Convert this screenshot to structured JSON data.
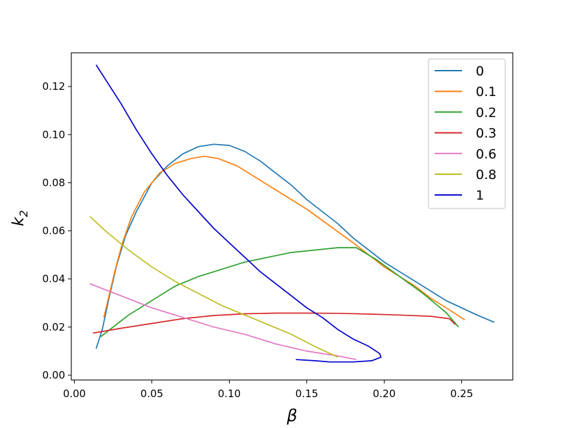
{
  "chart_data": {
    "type": "line",
    "xlabel": "β",
    "ylabel": "k",
    "ylabel_subscript": "2",
    "xlim": [
      -0.002,
      0.283
    ],
    "ylim": [
      -0.002,
      0.134
    ],
    "xticks": [
      0.0,
      0.05,
      0.1,
      0.15,
      0.2,
      0.25
    ],
    "xtick_labels": [
      "0.00",
      "0.05",
      "0.10",
      "0.15",
      "0.20",
      "0.25"
    ],
    "yticks": [
      0.0,
      0.02,
      0.04,
      0.06,
      0.08,
      0.1,
      0.12
    ],
    "ytick_labels": [
      "0.00",
      "0.02",
      "0.04",
      "0.06",
      "0.08",
      "0.10",
      "0.12"
    ],
    "grid": false,
    "legend_position": "top-right",
    "series": [
      {
        "name": "0",
        "color": "#1f77b4",
        "points": [
          [
            0.014,
            0.011
          ],
          [
            0.018,
            0.019
          ],
          [
            0.022,
            0.031
          ],
          [
            0.027,
            0.045
          ],
          [
            0.033,
            0.058
          ],
          [
            0.04,
            0.068
          ],
          [
            0.05,
            0.08
          ],
          [
            0.06,
            0.087
          ],
          [
            0.07,
            0.092
          ],
          [
            0.08,
            0.095
          ],
          [
            0.09,
            0.096
          ],
          [
            0.1,
            0.0955
          ],
          [
            0.11,
            0.093
          ],
          [
            0.12,
            0.089
          ],
          [
            0.13,
            0.084
          ],
          [
            0.14,
            0.079
          ],
          [
            0.15,
            0.073
          ],
          [
            0.16,
            0.068
          ],
          [
            0.17,
            0.063
          ],
          [
            0.18,
            0.057
          ],
          [
            0.19,
            0.052
          ],
          [
            0.2,
            0.047
          ],
          [
            0.21,
            0.043
          ],
          [
            0.22,
            0.039
          ],
          [
            0.23,
            0.035
          ],
          [
            0.24,
            0.031
          ],
          [
            0.25,
            0.028
          ],
          [
            0.26,
            0.025
          ],
          [
            0.271,
            0.022
          ]
        ]
      },
      {
        "name": "0.1",
        "color": "#ff7f0e",
        "points": [
          [
            0.019,
            0.024
          ],
          [
            0.022,
            0.032
          ],
          [
            0.026,
            0.043
          ],
          [
            0.031,
            0.055
          ],
          [
            0.037,
            0.066
          ],
          [
            0.045,
            0.076
          ],
          [
            0.055,
            0.084
          ],
          [
            0.065,
            0.088
          ],
          [
            0.075,
            0.09
          ],
          [
            0.084,
            0.091
          ],
          [
            0.093,
            0.09
          ],
          [
            0.105,
            0.087
          ],
          [
            0.12,
            0.081
          ],
          [
            0.135,
            0.075
          ],
          [
            0.15,
            0.069
          ],
          [
            0.165,
            0.062
          ],
          [
            0.18,
            0.055
          ],
          [
            0.19,
            0.05
          ],
          [
            0.2,
            0.045
          ],
          [
            0.21,
            0.041
          ],
          [
            0.22,
            0.037
          ],
          [
            0.23,
            0.032
          ],
          [
            0.24,
            0.028
          ],
          [
            0.252,
            0.023
          ]
        ]
      },
      {
        "name": "0.2",
        "color": "#2ca02c",
        "points": [
          [
            0.017,
            0.016
          ],
          [
            0.025,
            0.02
          ],
          [
            0.035,
            0.025
          ],
          [
            0.045,
            0.029
          ],
          [
            0.055,
            0.033
          ],
          [
            0.065,
            0.037
          ],
          [
            0.08,
            0.041
          ],
          [
            0.095,
            0.044
          ],
          [
            0.11,
            0.047
          ],
          [
            0.125,
            0.049
          ],
          [
            0.14,
            0.051
          ],
          [
            0.155,
            0.052
          ],
          [
            0.17,
            0.053
          ],
          [
            0.182,
            0.053
          ],
          [
            0.195,
            0.048
          ],
          [
            0.21,
            0.041
          ],
          [
            0.225,
            0.034
          ],
          [
            0.24,
            0.026
          ],
          [
            0.248,
            0.02
          ]
        ]
      },
      {
        "name": "0.3",
        "color": "#d62728",
        "points": [
          [
            0.012,
            0.0175
          ],
          [
            0.03,
            0.0195
          ],
          [
            0.05,
            0.0215
          ],
          [
            0.07,
            0.0235
          ],
          [
            0.09,
            0.0248
          ],
          [
            0.11,
            0.0255
          ],
          [
            0.13,
            0.0258
          ],
          [
            0.15,
            0.0258
          ],
          [
            0.17,
            0.0257
          ],
          [
            0.19,
            0.0254
          ],
          [
            0.21,
            0.025
          ],
          [
            0.23,
            0.0245
          ],
          [
            0.242,
            0.0235
          ],
          [
            0.246,
            0.021
          ]
        ]
      },
      {
        "name": "0.6",
        "color": "#e377c2",
        "points": [
          [
            0.01,
            0.038
          ],
          [
            0.03,
            0.033
          ],
          [
            0.05,
            0.028
          ],
          [
            0.07,
            0.024
          ],
          [
            0.09,
            0.02
          ],
          [
            0.11,
            0.017
          ],
          [
            0.13,
            0.013
          ],
          [
            0.15,
            0.01
          ],
          [
            0.17,
            0.008
          ],
          [
            0.182,
            0.0065
          ]
        ]
      },
      {
        "name": "0.8",
        "color": "#bcbd22",
        "points": [
          [
            0.01,
            0.066
          ],
          [
            0.02,
            0.06
          ],
          [
            0.035,
            0.052
          ],
          [
            0.05,
            0.045
          ],
          [
            0.065,
            0.039
          ],
          [
            0.08,
            0.034
          ],
          [
            0.095,
            0.029
          ],
          [
            0.11,
            0.025
          ],
          [
            0.125,
            0.021
          ],
          [
            0.14,
            0.017
          ],
          [
            0.155,
            0.012
          ],
          [
            0.17,
            0.0075
          ]
        ]
      },
      {
        "name": "1",
        "color": "#0000cc",
        "points": [
          [
            0.014,
            0.129
          ],
          [
            0.02,
            0.123
          ],
          [
            0.03,
            0.113
          ],
          [
            0.04,
            0.102
          ],
          [
            0.05,
            0.092
          ],
          [
            0.06,
            0.083
          ],
          [
            0.07,
            0.075
          ],
          [
            0.08,
            0.068
          ],
          [
            0.09,
            0.061
          ],
          [
            0.1,
            0.055
          ],
          [
            0.11,
            0.049
          ],
          [
            0.12,
            0.043
          ],
          [
            0.13,
            0.038
          ],
          [
            0.14,
            0.033
          ],
          [
            0.15,
            0.028
          ],
          [
            0.16,
            0.024
          ],
          [
            0.17,
            0.019
          ],
          [
            0.18,
            0.015
          ],
          [
            0.19,
            0.012
          ],
          [
            0.197,
            0.009
          ],
          [
            0.198,
            0.0075
          ],
          [
            0.192,
            0.006
          ],
          [
            0.18,
            0.0055
          ],
          [
            0.165,
            0.0055
          ],
          [
            0.155,
            0.006
          ],
          [
            0.143,
            0.0065
          ]
        ]
      }
    ]
  }
}
